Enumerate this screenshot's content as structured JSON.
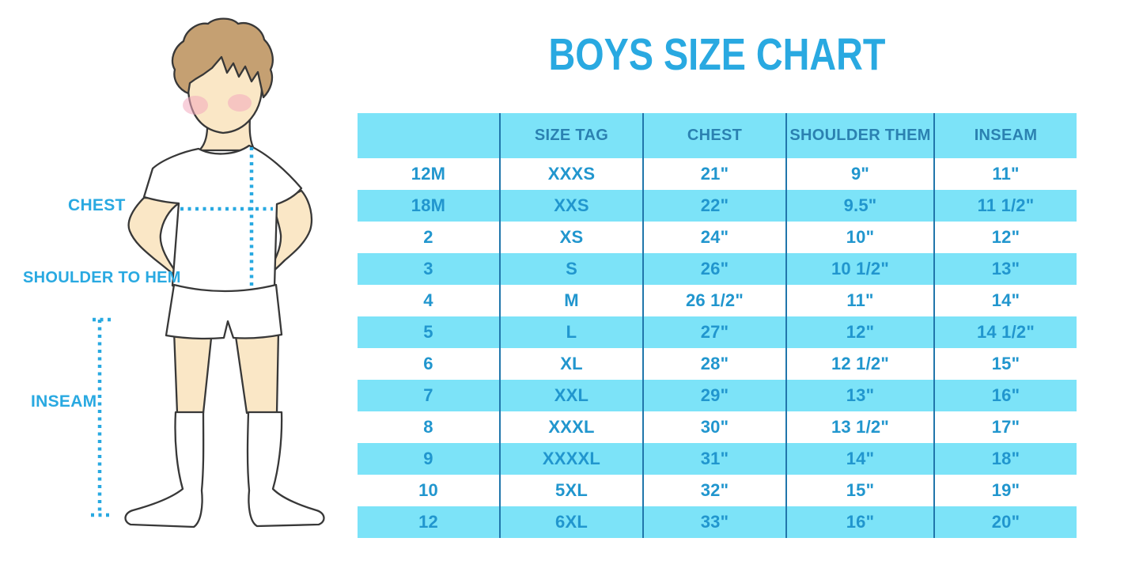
{
  "title": "BOYS SIZE CHART",
  "colors": {
    "accent_blue": "#29A9E1",
    "row_cyan": "#7CE3F8",
    "cell_text": "#2196CE",
    "header_text": "#2B81B1",
    "grid_line": "#2176AB",
    "skin": "#FAE7C6",
    "hair": "#C5A072",
    "blush": "#F2A9BE",
    "outline": "#383838"
  },
  "illustration": {
    "figure": "boy-front-white-tshirt-shorts-knee-socks",
    "labels": {
      "chest": "CHEST",
      "shoulder_to_hem": "SHOULDER TO HEM",
      "inseam": "INSEAM"
    }
  },
  "table": {
    "headers": [
      "",
      "SIZE TAG",
      "CHEST",
      "SHOULDER THEM",
      "INSEAM"
    ],
    "rows": [
      {
        "cells": [
          "12M",
          "XXXS",
          "21\"",
          "9\"",
          "11\""
        ]
      },
      {
        "cells": [
          "18M",
          "XXS",
          "22\"",
          "9.5\"",
          "11 1/2\""
        ]
      },
      {
        "cells": [
          "2",
          "XS",
          "24\"",
          "10\"",
          "12\""
        ]
      },
      {
        "cells": [
          "3",
          "S",
          "26\"",
          "10 1/2\"",
          "13\""
        ]
      },
      {
        "cells": [
          "4",
          "M",
          "26 1/2\"",
          "11\"",
          "14\""
        ]
      },
      {
        "cells": [
          "5",
          "L",
          "27\"",
          "12\"",
          "14 1/2\""
        ]
      },
      {
        "cells": [
          "6",
          "XL",
          "28\"",
          "12 1/2\"",
          "15\""
        ]
      },
      {
        "cells": [
          "7",
          "XXL",
          "29\"",
          "13\"",
          "16\""
        ]
      },
      {
        "cells": [
          "8",
          "XXXL",
          "30\"",
          "13 1/2\"",
          "17\""
        ]
      },
      {
        "cells": [
          "9",
          "XXXXL",
          "31\"",
          "14\"",
          "18\""
        ]
      },
      {
        "cells": [
          "10",
          "5XL",
          "32\"",
          "15\"",
          "19\""
        ]
      },
      {
        "cells": [
          "12",
          "6XL",
          "33\"",
          "16\"",
          "20\""
        ]
      }
    ]
  }
}
